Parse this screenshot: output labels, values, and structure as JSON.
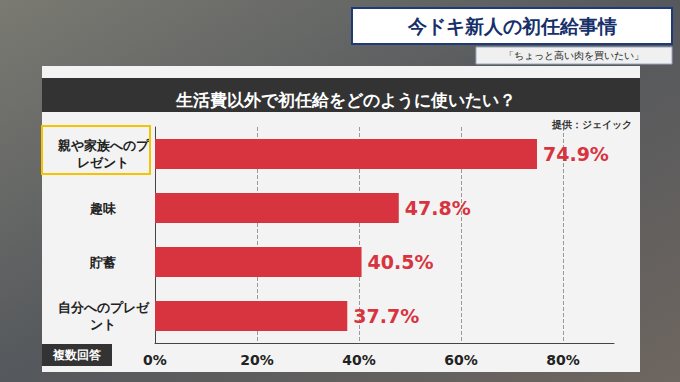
{
  "chart_data": {
    "type": "bar",
    "orientation": "horizontal",
    "title": "生活費以外で初任給をどのように使いたい？",
    "annotations": [
      "今ドキ新人の初任給事情",
      "「ちょっと高い肉を買いたい」",
      "提供：ジェイック",
      "複数回答"
    ],
    "categories": [
      "親や家族へのプレゼント",
      "趣味",
      "貯蓄",
      "自分へのプレゼント"
    ],
    "values": [
      74.9,
      47.8,
      40.5,
      37.7
    ],
    "value_labels": [
      "74.9%",
      "47.8%",
      "40.5%",
      "37.7%"
    ],
    "color": "#d8343f",
    "xlim": [
      0,
      90
    ],
    "xticks": [
      {
        "value": 0,
        "label": "0%"
      },
      {
        "value": 20,
        "label": "20%"
      },
      {
        "value": 40,
        "label": "40%"
      },
      {
        "value": 60,
        "label": "60%"
      },
      {
        "value": 80,
        "label": "80%"
      }
    ],
    "grid": true,
    "data_labels": true
  }
}
